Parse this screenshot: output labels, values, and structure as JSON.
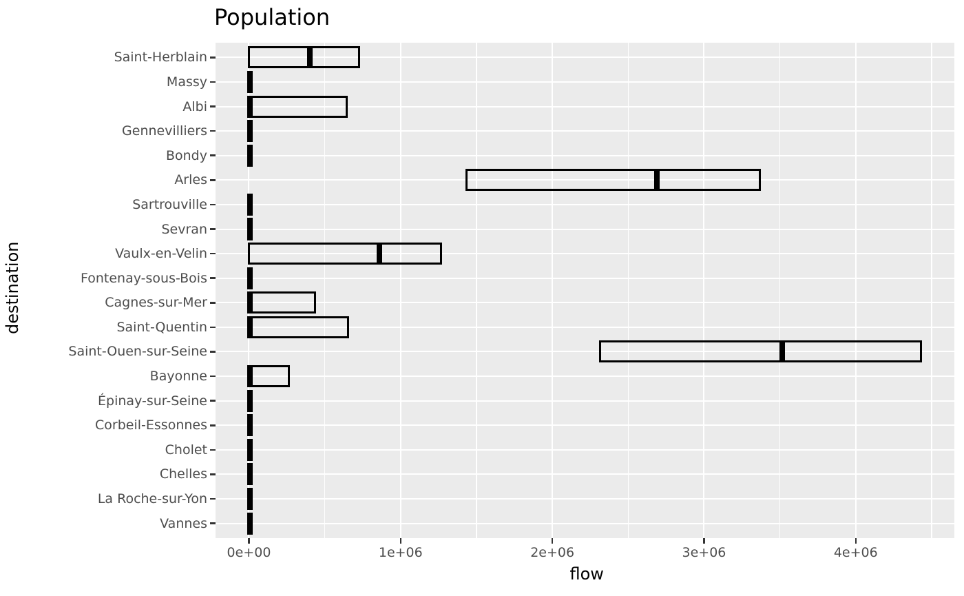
{
  "chart_data": {
    "type": "crossbar",
    "orientation": "horizontal",
    "title": "Population",
    "xlabel": "flow",
    "ylabel": "destination",
    "legend": "none",
    "grid": "on",
    "x_tick_labels": [
      "0e+00",
      "1e+06",
      "2e+06",
      "3e+06",
      "4e+06"
    ],
    "x_tick_values": [
      0,
      1000000,
      2000000,
      3000000,
      4000000
    ],
    "x_minor_tick_values": [
      500000,
      1500000,
      2500000,
      3500000,
      4500000
    ],
    "xlim": [
      -220000,
      4650000
    ],
    "categories": [
      "Saint-Herblain",
      "Massy",
      "Albi",
      "Gennevilliers",
      "Bondy",
      "Arles",
      "Sartrouville",
      "Sevran",
      "Vaulx-en-Velin",
      "Fontenay-sous-Bois",
      "Cagnes-sur-Mer",
      "Saint-Quentin",
      "Saint-Ouen-sur-Seine",
      "Bayonne",
      "Épinay-sur-Seine",
      "Corbeil-Essonnes",
      "Cholet",
      "Chelles",
      "La Roche-sur-Yon",
      "Vannes"
    ],
    "series": [
      {
        "destination": "Saint-Herblain",
        "min": 0,
        "mid": 404000,
        "max": 726000
      },
      {
        "destination": "Massy",
        "min": 0,
        "mid": 5000,
        "max": 15000
      },
      {
        "destination": "Albi",
        "min": 0,
        "mid": 8000,
        "max": 645000
      },
      {
        "destination": "Gennevilliers",
        "min": 0,
        "mid": 5000,
        "max": 15000
      },
      {
        "destination": "Bondy",
        "min": 0,
        "mid": 5000,
        "max": 15000
      },
      {
        "destination": "Arles",
        "min": 1436000,
        "mid": 2691000,
        "max": 3367000
      },
      {
        "destination": "Sartrouville",
        "min": 0,
        "mid": 5000,
        "max": 15000
      },
      {
        "destination": "Sevran",
        "min": 0,
        "mid": 5000,
        "max": 15000
      },
      {
        "destination": "Vaulx-en-Velin",
        "min": 0,
        "mid": 860000,
        "max": 1265000
      },
      {
        "destination": "Fontenay-sous-Bois",
        "min": 0,
        "mid": 5000,
        "max": 15000
      },
      {
        "destination": "Cagnes-sur-Mer",
        "min": 0,
        "mid": 8000,
        "max": 435000
      },
      {
        "destination": "Saint-Quentin",
        "min": 0,
        "mid": 8000,
        "max": 654000
      },
      {
        "destination": "Saint-Ouen-sur-Seine",
        "min": 2313000,
        "mid": 3515000,
        "max": 4431000
      },
      {
        "destination": "Bayonne",
        "min": 0,
        "mid": 8000,
        "max": 262000
      },
      {
        "destination": "Épinay-sur-Seine",
        "min": 0,
        "mid": 5000,
        "max": 15000
      },
      {
        "destination": "Corbeil-Essonnes",
        "min": 0,
        "mid": 5000,
        "max": 15000
      },
      {
        "destination": "Cholet",
        "min": 0,
        "mid": 5000,
        "max": 15000
      },
      {
        "destination": "Chelles",
        "min": 0,
        "mid": 5000,
        "max": 15000
      },
      {
        "destination": "La Roche-sur-Yon",
        "min": 0,
        "mid": 5000,
        "max": 15000
      },
      {
        "destination": "Vannes",
        "min": 0,
        "mid": 5000,
        "max": 15000
      }
    ],
    "colors": {
      "page_bg": "#FFFFFF",
      "panel_bg": "#EBEBEB",
      "grid": "#FFFFFF",
      "bar_stroke": "#000000",
      "tick_text": "#4D4D4D",
      "axis_title_text": "#000000",
      "tick_mark": "#333333"
    }
  }
}
